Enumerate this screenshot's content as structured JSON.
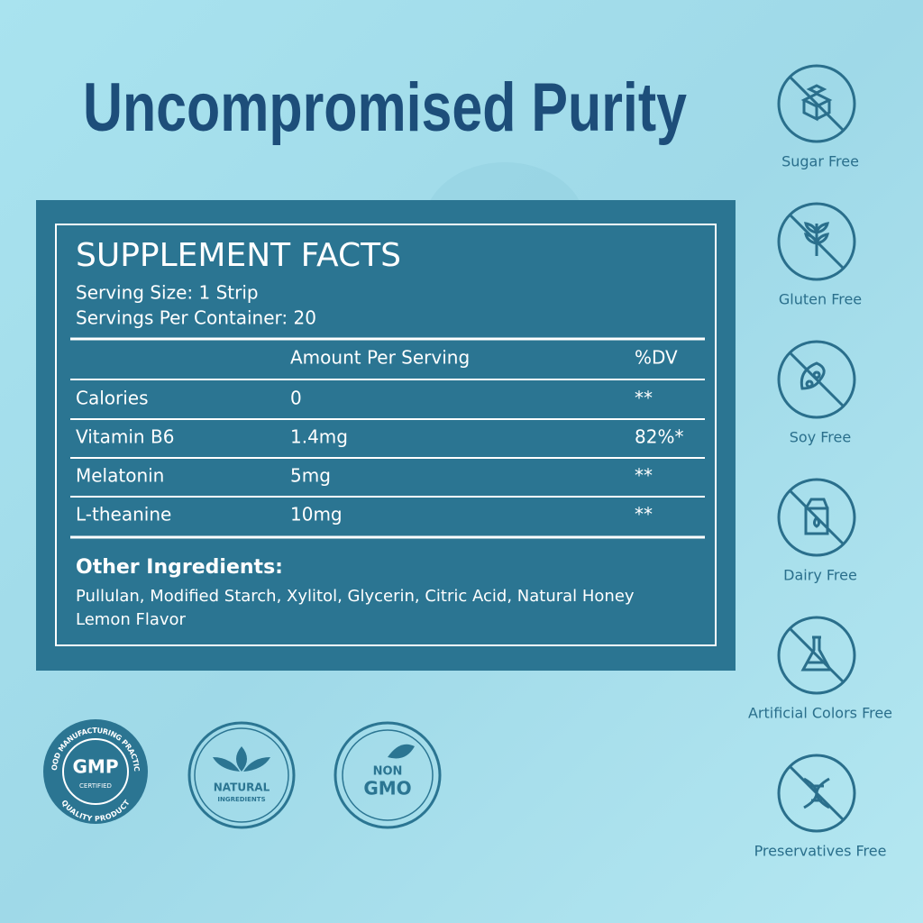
{
  "title": "Uncompromised Purity",
  "facts": {
    "heading": "SUPPLEMENT FACTS",
    "serving_size": "Serving Size: 1 Strip",
    "servings_per_container": "Servings Per Container: 20",
    "columns": [
      "Amount Per Serving",
      "%DV"
    ],
    "rows": [
      [
        "Calories",
        "0",
        "**"
      ],
      [
        "Vitamin B6",
        "1.4mg",
        "82%*"
      ],
      [
        "Melatonin",
        "5mg",
        "**"
      ],
      [
        "L-theanine",
        "10mg",
        "**"
      ]
    ],
    "other_heading": "Other Ingredients:",
    "other_ingredients": [
      "Pullulan, Modified Starch, Xylitol, Glycerin, Citric Acid, Natural Honey",
      "Lemon Flavor"
    ]
  },
  "features": [
    "Sugar Free",
    "Gluten Free",
    "Soy Free",
    "Dairy Free",
    "Artificial Colors Free",
    "Preservatives Free"
  ],
  "badges": {
    "gmp": {
      "ring_top": "GOOD MANUFACTURING PRACTICE",
      "main": "GMP",
      "sub": "CERTIFIED",
      "ring_bottom": "QUALITY PRODUCT"
    },
    "natural": [
      "NATURAL",
      "INGREDIENTS"
    ],
    "non_gmo": [
      "NON",
      "GMO"
    ]
  }
}
